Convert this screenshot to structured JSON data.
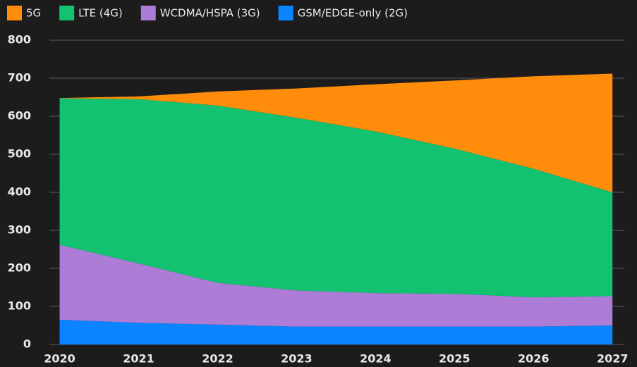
{
  "chart_data": {
    "type": "stacked_area",
    "x": [
      2020,
      2021,
      2022,
      2023,
      2024,
      2025,
      2026,
      2027
    ],
    "xlim": [
      2019.87,
      2027.15
    ],
    "xticks": [
      2020,
      2021,
      2022,
      2023,
      2024,
      2025,
      2026,
      2027
    ],
    "ylim": [
      0,
      800
    ],
    "yticks": [
      0,
      100,
      200,
      300,
      400,
      500,
      600,
      700,
      800
    ],
    "grid": true,
    "legend": "top",
    "series": [
      {
        "name": "5G",
        "color": "#ff8c0a",
        "values": [
          1,
          7,
          37,
          77,
          124,
          179,
          243,
          312
        ]
      },
      {
        "name": "LTE (4G)",
        "color": "#12c271",
        "values": [
          385,
          432,
          466,
          454,
          425,
          382,
          338,
          273
        ]
      },
      {
        "name": "WCDMA/HSPA (3G)",
        "color": "#ac7cd6",
        "values": [
          197,
          156,
          110,
          95,
          88,
          86,
          77,
          77
        ]
      },
      {
        "name": "GSM/EDGE-only (2G)",
        "color": "#0a84ff",
        "values": [
          65,
          57,
          52,
          47,
          47,
          47,
          47,
          50
        ]
      }
    ]
  }
}
